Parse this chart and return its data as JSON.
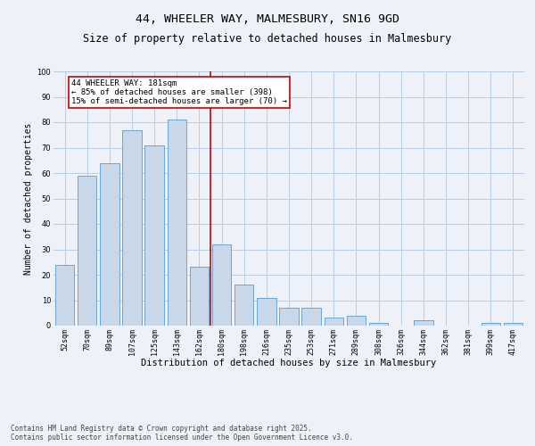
{
  "title1": "44, WHEELER WAY, MALMESBURY, SN16 9GD",
  "title2": "Size of property relative to detached houses in Malmesbury",
  "xlabel": "Distribution of detached houses by size in Malmesbury",
  "ylabel": "Number of detached properties",
  "categories": [
    "52sqm",
    "70sqm",
    "89sqm",
    "107sqm",
    "125sqm",
    "143sqm",
    "162sqm",
    "180sqm",
    "198sqm",
    "216sqm",
    "235sqm",
    "253sqm",
    "271sqm",
    "289sqm",
    "308sqm",
    "326sqm",
    "344sqm",
    "362sqm",
    "381sqm",
    "399sqm",
    "417sqm"
  ],
  "values": [
    24,
    59,
    64,
    77,
    71,
    81,
    23,
    32,
    16,
    11,
    7,
    7,
    3,
    4,
    1,
    0,
    2,
    0,
    0,
    1,
    1
  ],
  "bar_color": "#c8d8e8",
  "bar_edge_color": "#5b9bd5",
  "grid_color": "#b8cce4",
  "background_color": "#eef2f8",
  "marker_color": "#cc0000",
  "annotation_text": "44 WHEELER WAY: 181sqm\n← 85% of detached houses are smaller (398)\n15% of semi-detached houses are larger (70) →",
  "annotation_box_color": "#ffffff",
  "annotation_box_edge": "#cc0000",
  "ylim": [
    0,
    100
  ],
  "yticks": [
    0,
    10,
    20,
    30,
    40,
    50,
    60,
    70,
    80,
    90,
    100
  ],
  "footer": "Contains HM Land Registry data © Crown copyright and database right 2025.\nContains public sector information licensed under the Open Government Licence v3.0.",
  "title1_fontsize": 9.5,
  "title2_fontsize": 8.5,
  "xlabel_fontsize": 7.5,
  "ylabel_fontsize": 7,
  "tick_fontsize": 6,
  "annotation_fontsize": 6.5,
  "footer_fontsize": 5.5
}
